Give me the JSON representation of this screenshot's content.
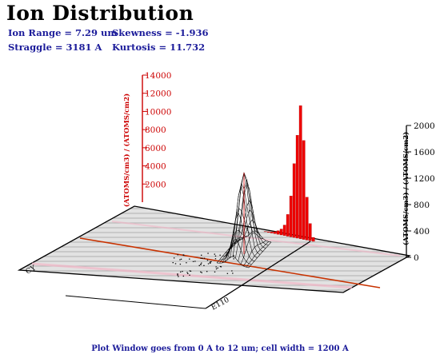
{
  "header": {
    "title": "Ion Distribution",
    "ion_range": "Ion Range =  7.29 um",
    "straggle": "Straggle =  3181 A",
    "skewness": "Skewness = -1.936",
    "kurtosis": "Kurtosis = 11.732"
  },
  "footer": {
    "text": "Plot Window goes from 0 A to 12 um;  cell width = 1200 A"
  },
  "chart_data": [
    {
      "type": "bar",
      "title": "",
      "ylabel": "(ATOMS/cm3) / (ATOMS/cm2)",
      "ylim": [
        0,
        14000
      ],
      "y_ticks": [
        2000,
        4000,
        6000,
        8000,
        10000,
        12000,
        14000
      ],
      "color": "#cc0000",
      "axis": "depth-left-vertical"
    },
    {
      "type": "bar",
      "title": "",
      "ylabel": "(ATOMS/cm3) / (ATOMS/cm2)",
      "ylim": [
        0,
        2000
      ],
      "y_ticks": [
        0,
        400,
        800,
        1200,
        1600,
        2000
      ],
      "color": "#ee0000",
      "axis": "right-vertical",
      "values": [
        5,
        10,
        15,
        30,
        55,
        90,
        160,
        330,
        620,
        1120,
        1560,
        2020,
        1500,
        650,
        260,
        60
      ]
    },
    {
      "type": "area",
      "title": "",
      "ylabel": "",
      "peak_height": 8800,
      "mesh_color": "#000000",
      "corner_labels": [
        "CY",
        "E110"
      ]
    }
  ]
}
